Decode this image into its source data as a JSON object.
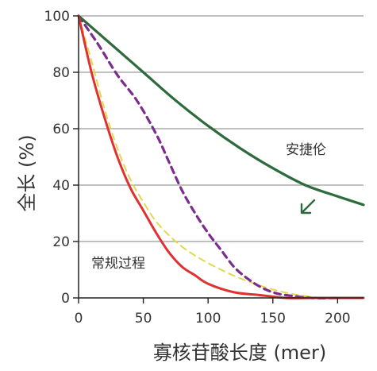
{
  "chart_data": {
    "type": "line",
    "xlabel": "寡核苷酸长度 (mer)",
    "ylabel": "全长 (%)",
    "xlim": [
      0,
      220
    ],
    "ylim": [
      0,
      100
    ],
    "x_ticks": [
      "0",
      "50",
      "100",
      "150",
      "200"
    ],
    "y_ticks": [
      "0",
      "20",
      "40",
      "60",
      "80",
      "100"
    ],
    "grid": "horizontal",
    "legend": "none",
    "annotations": [
      {
        "text": "安捷伦"
      },
      {
        "text": "常规过程"
      }
    ],
    "series": [
      {
        "name": "安捷伦",
        "color": "#2d6a3c",
        "style": "solid",
        "x": [
          0,
          25,
          50,
          75,
          100,
          125,
          150,
          175,
          200,
          220
        ],
        "y": [
          100,
          90,
          80,
          70,
          61,
          53,
          46,
          40,
          36,
          33
        ]
      },
      {
        "name": "",
        "color": "#7b2d8e",
        "style": "dashed",
        "x": [
          0,
          15,
          30,
          45,
          60,
          70,
          80,
          90,
          100,
          110,
          120,
          130,
          140,
          150,
          160,
          180,
          200
        ],
        "y": [
          100,
          90,
          79,
          70,
          58,
          48,
          38,
          30,
          23,
          17,
          11,
          7,
          4,
          2,
          1,
          0,
          0
        ]
      },
      {
        "name": "",
        "color": "#e0d94f",
        "style": "dashed",
        "x": [
          0,
          10,
          20,
          30,
          40,
          50,
          60,
          75,
          90,
          110,
          130,
          150,
          170,
          190,
          210
        ],
        "y": [
          100,
          84,
          67,
          53,
          42,
          34,
          27,
          20,
          15,
          10,
          6,
          3,
          1,
          0,
          0
        ]
      },
      {
        "name": "常规过程",
        "color": "#e03131",
        "style": "solid",
        "x": [
          0,
          10,
          20,
          30,
          40,
          50,
          60,
          70,
          80,
          90,
          100,
          120,
          140,
          160,
          180,
          200,
          220
        ],
        "y": [
          100,
          80,
          64,
          50,
          39,
          31,
          23,
          16,
          11,
          8,
          5,
          2,
          1,
          0,
          0,
          0,
          0
        ]
      }
    ]
  }
}
